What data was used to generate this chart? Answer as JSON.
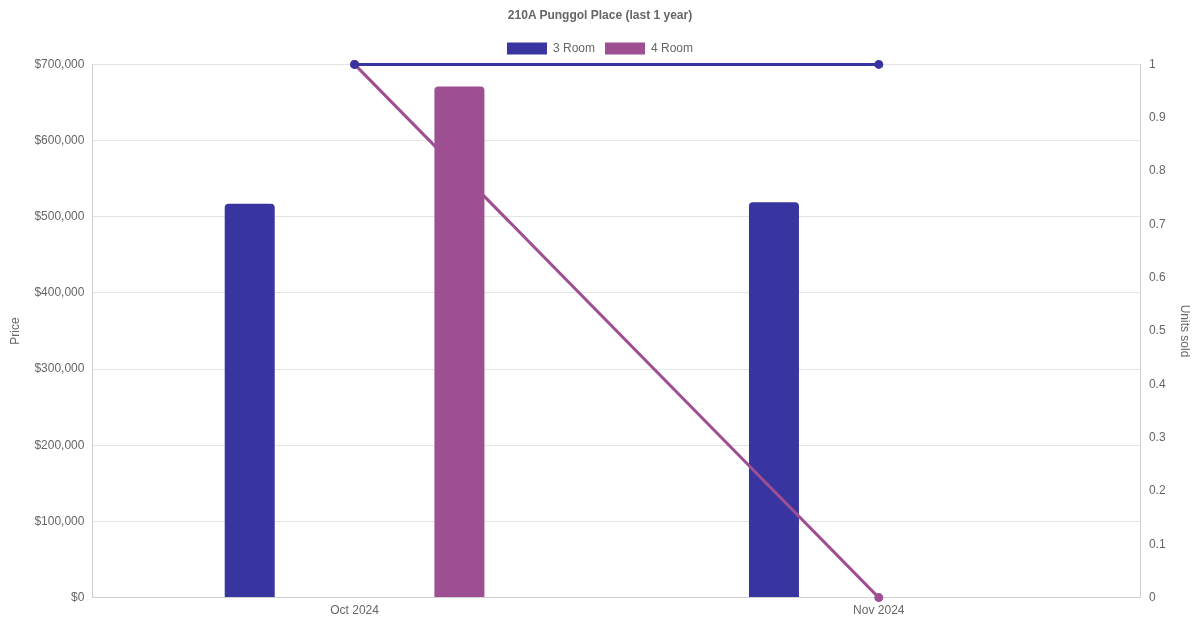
{
  "chart_data": {
    "type": "bar",
    "title": "210A Punggol Place (last 1 year)",
    "ylabel": "Price",
    "y2label": "Units sold",
    "categories": [
      "Oct 2024",
      "Nov 2024"
    ],
    "series": [
      {
        "name": "3 Room",
        "color": "#3834a0",
        "values": [
          517000,
          519000
        ]
      },
      {
        "name": "4 Room",
        "color": "#9e4f92",
        "values": [
          671000,
          null
        ]
      },
      {
        "type": "line",
        "axis": "y2",
        "color": "#3834a0",
        "values": [
          1,
          1
        ]
      },
      {
        "type": "line",
        "axis": "y2",
        "color": "#9e4f92",
        "values": [
          1,
          0
        ]
      }
    ],
    "ylim": [
      0,
      700000
    ],
    "yticks": [
      {
        "value": 0,
        "label": "$0"
      },
      {
        "value": 100000,
        "label": "$100,000"
      },
      {
        "value": 200000,
        "label": "$200,000"
      },
      {
        "value": 300000,
        "label": "$300,000"
      },
      {
        "value": 400000,
        "label": "$400,000"
      },
      {
        "value": 500000,
        "label": "$500,000"
      },
      {
        "value": 600000,
        "label": "$600,000"
      },
      {
        "value": 700000,
        "label": "$700,000"
      }
    ],
    "y2lim": [
      0,
      1
    ],
    "y2ticks": [
      0,
      0.1,
      0.2,
      0.3,
      0.4,
      0.5,
      0.6,
      0.7,
      0.8,
      0.9,
      1
    ],
    "grid": "y",
    "legend": "top",
    "marker": "circle"
  }
}
